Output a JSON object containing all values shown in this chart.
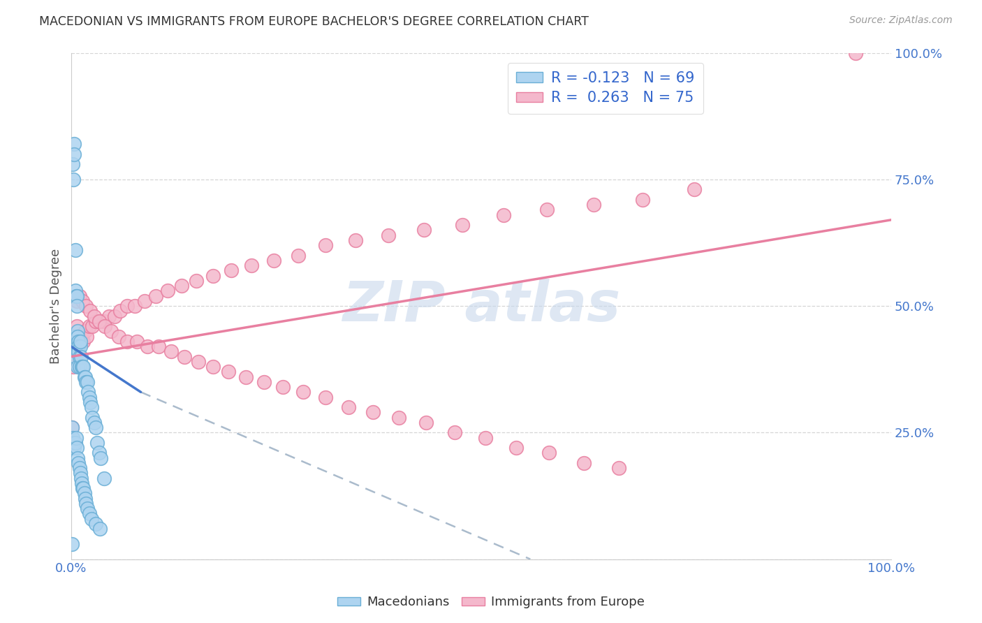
{
  "title": "MACEDONIAN VS IMMIGRANTS FROM EUROPE BACHELOR'S DEGREE CORRELATION CHART",
  "source": "Source: ZipAtlas.com",
  "ylabel": "Bachelor's Degree",
  "yticks_labels": [
    "",
    "25.0%",
    "50.0%",
    "75.0%",
    "100.0%"
  ],
  "ytick_vals": [
    0.0,
    0.25,
    0.5,
    0.75,
    1.0
  ],
  "mac_color": "#aed4f0",
  "mac_edge": "#6aafd6",
  "imm_color": "#f4b8cc",
  "imm_edge": "#e87fa0",
  "trend_mac_color": "#4477cc",
  "trend_imm_color": "#e87fa0",
  "trend_ext_color": "#aabbcc",
  "watermark_color": "#c8d8ec",
  "background": "#ffffff",
  "macedonians_x": [
    0.001,
    0.002,
    0.003,
    0.004,
    0.004,
    0.004,
    0.005,
    0.005,
    0.005,
    0.005,
    0.006,
    0.006,
    0.006,
    0.007,
    0.007,
    0.007,
    0.008,
    0.008,
    0.008,
    0.008,
    0.009,
    0.009,
    0.009,
    0.01,
    0.01,
    0.011,
    0.011,
    0.012,
    0.013,
    0.014,
    0.015,
    0.016,
    0.017,
    0.018,
    0.02,
    0.021,
    0.022,
    0.023,
    0.025,
    0.026,
    0.028,
    0.03,
    0.032,
    0.034,
    0.036,
    0.04,
    0.001,
    0.002,
    0.003,
    0.004,
    0.005,
    0.006,
    0.007,
    0.008,
    0.009,
    0.01,
    0.011,
    0.012,
    0.013,
    0.014,
    0.015,
    0.016,
    0.017,
    0.018,
    0.02,
    0.022,
    0.025,
    0.03,
    0.035
  ],
  "macedonians_y": [
    0.03,
    0.78,
    0.75,
    0.82,
    0.8,
    0.44,
    0.61,
    0.53,
    0.42,
    0.4,
    0.42,
    0.41,
    0.52,
    0.52,
    0.5,
    0.42,
    0.45,
    0.44,
    0.41,
    0.38,
    0.43,
    0.42,
    0.41,
    0.4,
    0.38,
    0.42,
    0.43,
    0.4,
    0.38,
    0.38,
    0.38,
    0.36,
    0.36,
    0.35,
    0.35,
    0.33,
    0.32,
    0.31,
    0.3,
    0.28,
    0.27,
    0.26,
    0.23,
    0.21,
    0.2,
    0.16,
    0.26,
    0.24,
    0.23,
    0.22,
    0.23,
    0.24,
    0.22,
    0.2,
    0.19,
    0.18,
    0.17,
    0.16,
    0.15,
    0.14,
    0.14,
    0.13,
    0.12,
    0.11,
    0.1,
    0.09,
    0.08,
    0.07,
    0.06
  ],
  "immigrants_x": [
    0.001,
    0.003,
    0.005,
    0.007,
    0.009,
    0.011,
    0.013,
    0.015,
    0.017,
    0.019,
    0.022,
    0.026,
    0.03,
    0.035,
    0.04,
    0.046,
    0.053,
    0.06,
    0.068,
    0.078,
    0.09,
    0.103,
    0.118,
    0.135,
    0.153,
    0.173,
    0.195,
    0.22,
    0.247,
    0.277,
    0.31,
    0.347,
    0.387,
    0.43,
    0.477,
    0.527,
    0.58,
    0.637,
    0.697,
    0.76,
    0.007,
    0.01,
    0.014,
    0.018,
    0.023,
    0.028,
    0.034,
    0.041,
    0.049,
    0.058,
    0.068,
    0.08,
    0.093,
    0.107,
    0.122,
    0.138,
    0.155,
    0.173,
    0.192,
    0.213,
    0.235,
    0.258,
    0.283,
    0.31,
    0.338,
    0.368,
    0.4,
    0.433,
    0.468,
    0.505,
    0.543,
    0.583,
    0.625,
    0.668,
    0.957
  ],
  "immigrants_y": [
    0.26,
    0.38,
    0.42,
    0.46,
    0.44,
    0.44,
    0.44,
    0.43,
    0.45,
    0.44,
    0.46,
    0.46,
    0.47,
    0.47,
    0.47,
    0.48,
    0.48,
    0.49,
    0.5,
    0.5,
    0.51,
    0.52,
    0.53,
    0.54,
    0.55,
    0.56,
    0.57,
    0.58,
    0.59,
    0.6,
    0.62,
    0.63,
    0.64,
    0.65,
    0.66,
    0.68,
    0.69,
    0.7,
    0.71,
    0.73,
    0.51,
    0.52,
    0.51,
    0.5,
    0.49,
    0.48,
    0.47,
    0.46,
    0.45,
    0.44,
    0.43,
    0.43,
    0.42,
    0.42,
    0.41,
    0.4,
    0.39,
    0.38,
    0.37,
    0.36,
    0.35,
    0.34,
    0.33,
    0.32,
    0.3,
    0.29,
    0.28,
    0.27,
    0.25,
    0.24,
    0.22,
    0.21,
    0.19,
    0.18,
    1.0
  ],
  "mac_trend_x0": 0.0,
  "mac_trend_x1": 0.085,
  "mac_trend_y0": 0.42,
  "mac_trend_y1": 0.33,
  "ext_trend_x0": 0.085,
  "ext_trend_x1": 0.56,
  "ext_trend_y0": 0.33,
  "ext_trend_y1": 0.0,
  "imm_trend_x0": 0.0,
  "imm_trend_x1": 1.0,
  "imm_trend_y0": 0.4,
  "imm_trend_y1": 0.67,
  "xlim": [
    0.0,
    1.0
  ],
  "ylim": [
    0.0,
    1.0
  ]
}
